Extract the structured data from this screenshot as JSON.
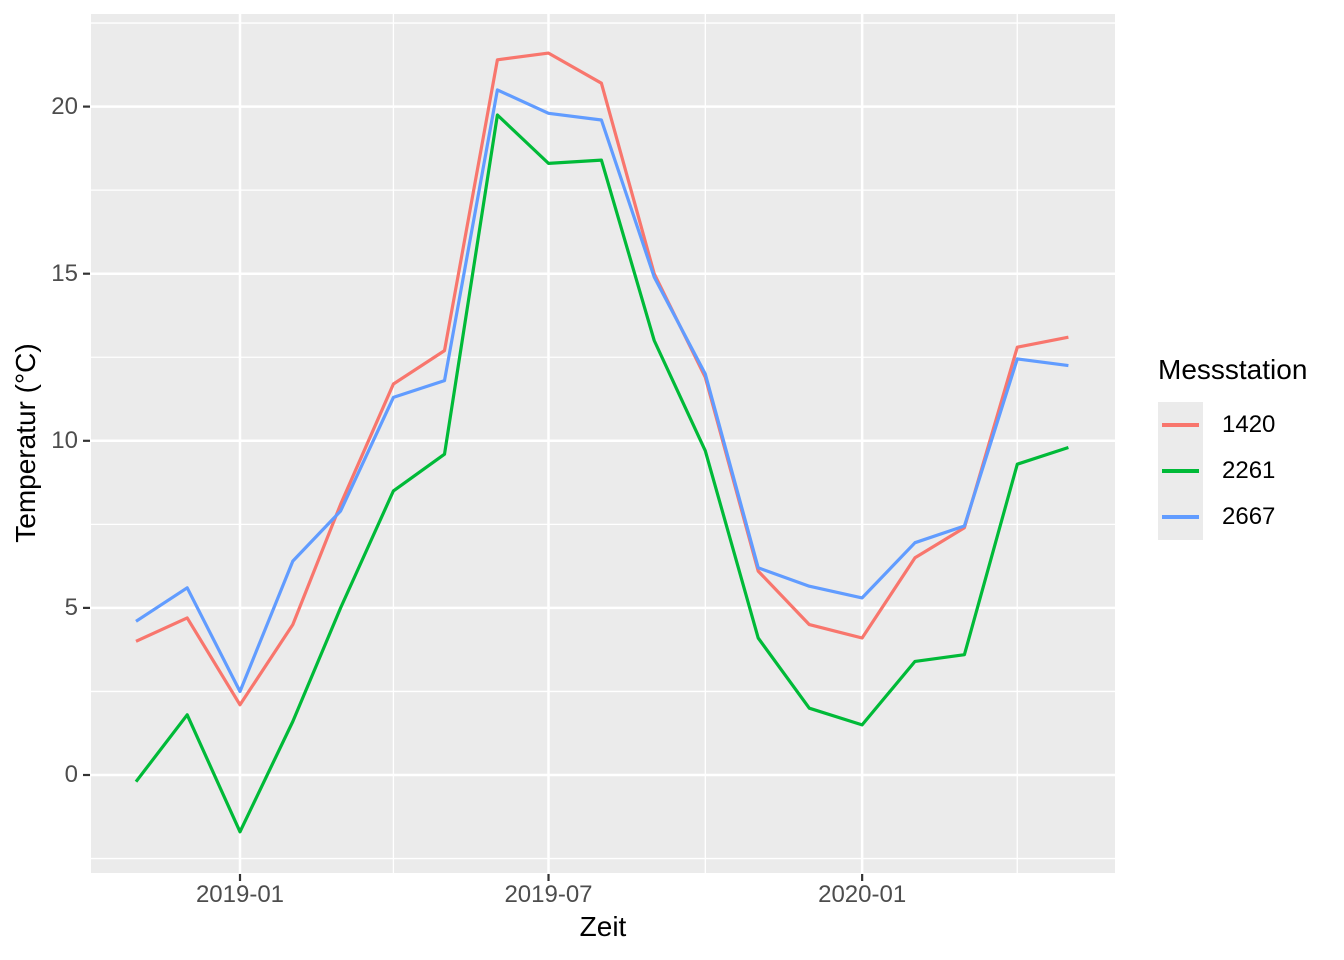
{
  "chart_data": {
    "type": "line",
    "xlabel": "Zeit",
    "ylabel": "Temperatur (°C)",
    "legend_title": "Messstation",
    "legend_position": "right",
    "x": [
      "2018-11",
      "2018-12",
      "2019-01",
      "2019-02",
      "2019-03",
      "2019-04",
      "2019-05",
      "2019-06",
      "2019-07",
      "2019-08",
      "2019-09",
      "2019-10",
      "2019-11",
      "2019-12",
      "2020-01",
      "2020-02",
      "2020-03",
      "2020-04",
      "2020-05"
    ],
    "series": [
      {
        "name": "1420",
        "color": "#F8766D",
        "values": [
          4.0,
          4.7,
          2.1,
          4.5,
          8.1,
          11.7,
          12.7,
          21.4,
          21.6,
          20.7,
          15.0,
          11.9,
          6.1,
          4.5,
          4.1,
          6.5,
          7.4,
          12.8,
          13.1
        ]
      },
      {
        "name": "2261",
        "color": "#00BA38",
        "values": [
          -0.2,
          1.8,
          -1.7,
          1.6,
          5.0,
          8.5,
          9.6,
          19.75,
          18.3,
          18.4,
          13.0,
          9.7,
          4.1,
          2.0,
          1.5,
          3.4,
          3.6,
          9.3,
          9.8
        ]
      },
      {
        "name": "2667",
        "color": "#619CFF",
        "values": [
          4.6,
          5.6,
          2.5,
          6.4,
          7.9,
          11.3,
          11.8,
          20.5,
          19.8,
          19.6,
          14.9,
          12.0,
          6.2,
          5.65,
          5.3,
          6.95,
          7.45,
          12.45,
          12.25
        ]
      }
    ],
    "x_major_ticks": [
      {
        "label": "2019-01",
        "date": "2019-01"
      },
      {
        "label": "2019-07",
        "date": "2019-07"
      },
      {
        "label": "2020-01",
        "date": "2020-01"
      }
    ],
    "x_minor_ticks": [
      "2019-04",
      "2019-10",
      "2020-04"
    ],
    "y_major_ticks": [
      0,
      5,
      10,
      15,
      20
    ],
    "y_minor_ticks": [
      -2.5,
      2.5,
      7.5,
      12.5,
      17.5,
      22.5
    ],
    "ylim": [
      -2.93,
      22.77
    ],
    "grid": true,
    "panel_bg": "#EBEBEB",
    "grid_color": "#FFFFFF",
    "tick_mark_color": "#333333",
    "tick_label_color": "#4D4D4D"
  }
}
